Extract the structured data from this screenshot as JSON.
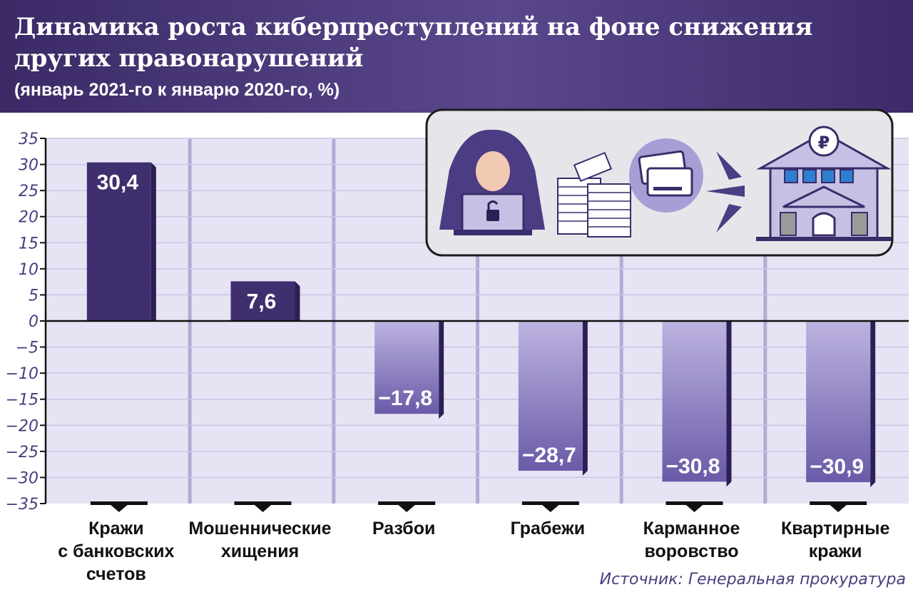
{
  "header": {
    "title": "Динамика роста киберпреступлений на фоне снижения других правонарушений",
    "subtitle": "(январь 2021-го к январю 2020-го, %)"
  },
  "source": "Источник: Генеральная прокуратура",
  "illustration": {
    "icons": [
      "hacker-icon",
      "money-stacks-icon",
      "bank-card-icon",
      "arrows-icon",
      "bank-building-icon"
    ]
  },
  "chart_data": {
    "type": "bar",
    "categories": [
      [
        "Кражи",
        "с банковских",
        "счетов"
      ],
      [
        "Мошеннические",
        "хищения"
      ],
      [
        "Разбои"
      ],
      [
        "Грабежи"
      ],
      [
        "Карманное",
        "воровство"
      ],
      [
        "Квартирные",
        "кражи"
      ]
    ],
    "values": [
      30.4,
      7.6,
      -17.8,
      -28.7,
      -30.8,
      -30.9
    ],
    "value_labels": [
      "30,4",
      "7,6",
      "−17,8",
      "−28,7",
      "−30,8",
      "−30,9"
    ],
    "yticks": [
      35,
      30,
      25,
      20,
      15,
      10,
      5,
      0,
      -5,
      -10,
      -15,
      -20,
      -25,
      -30,
      -35
    ],
    "ytick_labels": [
      "35",
      "30",
      "25",
      "20",
      "15",
      "10",
      "5",
      "0",
      "−5",
      "−10",
      "−15",
      "−20",
      "−25",
      "−30",
      "−35"
    ],
    "ylim": [
      -35,
      35
    ],
    "grid": true,
    "colors": {
      "positive_bar": "#3f2f6e",
      "negative_bar_top": "#bdb3e0",
      "negative_bar_bottom": "#6a5aa8",
      "bar_side": "#2b1f55",
      "panel": "#e6e4f4",
      "panel_divider": "#b3aad6",
      "gridline": "#c9c4e4",
      "axis_text": "#4a3d7e"
    }
  }
}
